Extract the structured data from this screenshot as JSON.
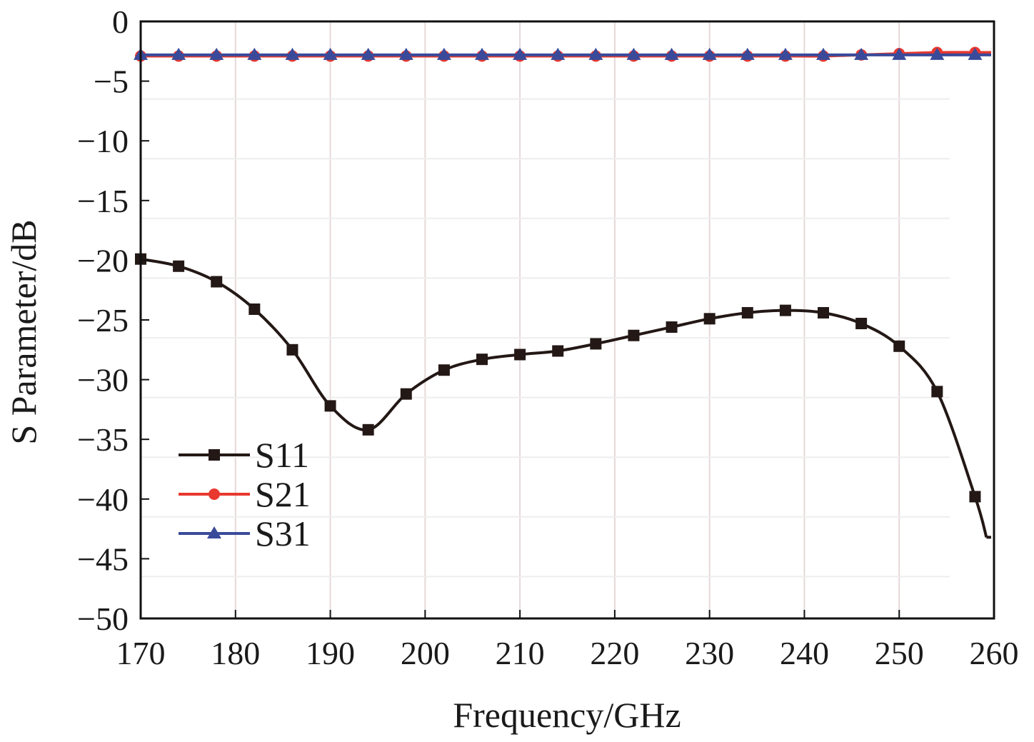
{
  "chart_data": {
    "type": "line",
    "title": "",
    "xlabel": "Frequency/GHz",
    "ylabel": "S Parameter/dB",
    "xlim": [
      170,
      260
    ],
    "ylim": [
      -50,
      0
    ],
    "xticks": [
      "170",
      "180",
      "190",
      "200",
      "210",
      "220",
      "230",
      "240",
      "250",
      "260"
    ],
    "yticks": [
      "0",
      "−5",
      "−10",
      "−15",
      "−20",
      "−25",
      "−30",
      "−35",
      "−40",
      "−45",
      "−50"
    ],
    "xtick_values": [
      170,
      180,
      190,
      200,
      210,
      220,
      230,
      240,
      250,
      260
    ],
    "ytick_values": [
      0,
      -5,
      -10,
      -15,
      -20,
      -25,
      -30,
      -35,
      -40,
      -45,
      -50
    ],
    "grid": true,
    "legend_position": "lower-left",
    "x": [
      170,
      174,
      178,
      182,
      186,
      190,
      194,
      198,
      202,
      206,
      210,
      214,
      218,
      222,
      226,
      230,
      234,
      238,
      242,
      246,
      250,
      254,
      258
    ],
    "series": [
      {
        "name": "S11",
        "color": "#231815",
        "marker": "square",
        "values": [
          -19.9,
          -20.5,
          -21.8,
          -24.1,
          -27.5,
          -32.2,
          -34.2,
          -31.2,
          -29.2,
          -28.3,
          -27.9,
          -27.6,
          -27.0,
          -26.3,
          -25.6,
          -24.9,
          -24.4,
          -24.2,
          -24.4,
          -25.3,
          -27.2,
          -31.0,
          -39.8
        ],
        "end_point": [
          259.2,
          -43.2
        ]
      },
      {
        "name": "S21",
        "color": "#e8382f",
        "marker": "circle",
        "values": [
          -2.9,
          -2.9,
          -2.9,
          -2.9,
          -2.9,
          -2.9,
          -2.9,
          -2.9,
          -2.9,
          -2.9,
          -2.9,
          -2.9,
          -2.9,
          -2.9,
          -2.9,
          -2.9,
          -2.9,
          -2.9,
          -2.9,
          -2.8,
          -2.7,
          -2.6,
          -2.6
        ]
      },
      {
        "name": "S31",
        "color": "#3a4a9a",
        "marker": "triangle",
        "values": [
          -2.8,
          -2.8,
          -2.8,
          -2.8,
          -2.8,
          -2.8,
          -2.8,
          -2.8,
          -2.8,
          -2.8,
          -2.8,
          -2.8,
          -2.8,
          -2.8,
          -2.8,
          -2.8,
          -2.8,
          -2.8,
          -2.8,
          -2.8,
          -2.8,
          -2.8,
          -2.8
        ]
      }
    ]
  }
}
